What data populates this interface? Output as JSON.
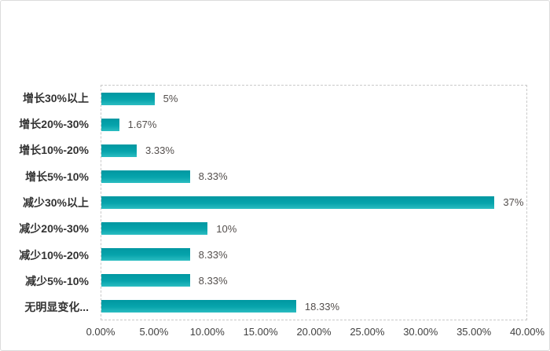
{
  "chart_data": {
    "type": "bar",
    "orientation": "horizontal",
    "title": "",
    "xlabel": "",
    "ylabel": "",
    "xlim": [
      0,
      40
    ],
    "grid": "dashed plot border only, no inner gridlines",
    "legend": "none",
    "categories": [
      "增长30%以上",
      "增长20%-30%",
      "增长10%-20%",
      "增长5%-10%",
      "减少30%以上",
      "减少20%-30%",
      "减少10%-20%",
      "减少5%-10%",
      "无明显变化..."
    ],
    "values": [
      5,
      1.67,
      3.33,
      8.33,
      37,
      10,
      8.33,
      8.33,
      18.33
    ],
    "data_labels": [
      "5%",
      "1.67%",
      "3.33%",
      "8.33%",
      "37%",
      "10%",
      "8.33%",
      "8.33%",
      "18.33%"
    ],
    "x_ticks": [
      "0.00%",
      "5.00%",
      "10.00%",
      "15.00%",
      "20.00%",
      "25.00%",
      "30.00%",
      "35.00%",
      "40.00%"
    ],
    "colors": {
      "bar": "#0aa5ad",
      "bar_gradient_top": "#0097a1",
      "bar_gradient_bottom": "#2bbdc2",
      "category_text": "#333333",
      "value_text": "#544f4d",
      "axis_text": "#404040",
      "plot_border": "#c9c9c9",
      "outer_border": "#dcdcdc",
      "background": "#ffffff"
    }
  }
}
